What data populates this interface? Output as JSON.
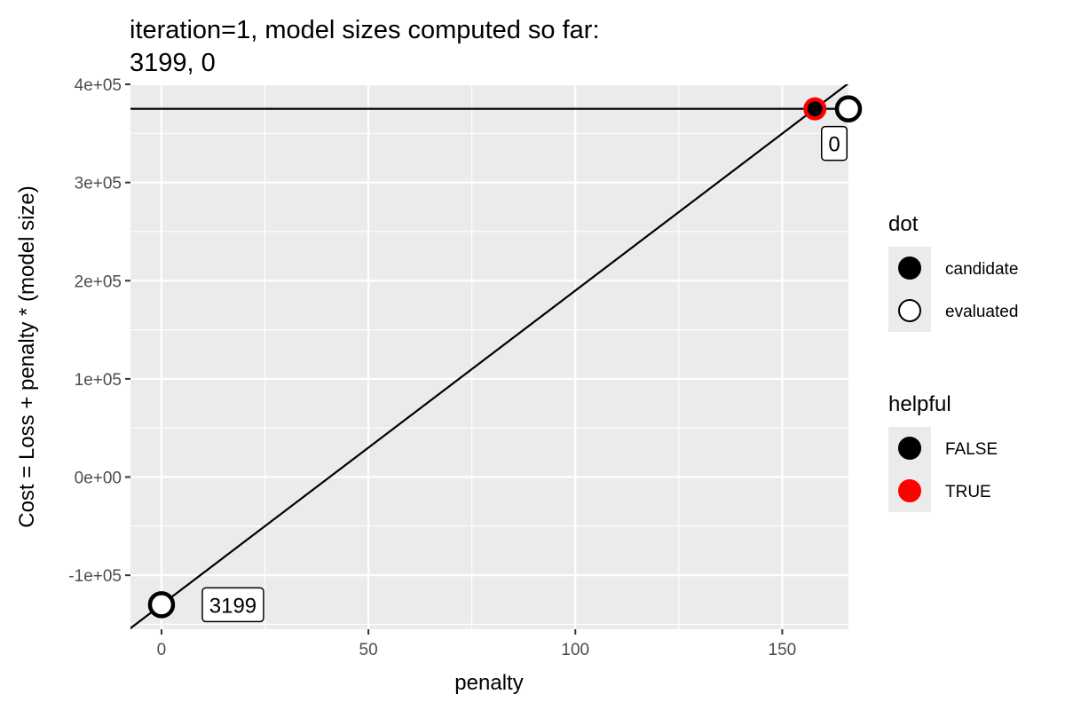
{
  "chart_data": {
    "type": "scatter",
    "title": "iteration=1, model sizes computed so far:",
    "subtitle": "3199, 0",
    "xlabel": "penalty",
    "ylabel": "Cost = Loss + penalty * (model size)",
    "xlim": [
      -7.5,
      166
    ],
    "ylim": [
      -155000,
      400000
    ],
    "x_ticks": [
      0,
      50,
      100,
      150
    ],
    "x_tick_labels": [
      "0",
      "50",
      "100",
      "150"
    ],
    "y_ticks": [
      -100000,
      0,
      100000,
      200000,
      300000,
      400000
    ],
    "y_tick_labels": [
      "-1e+05",
      "0e+00",
      "1e+05",
      "2e+05",
      "3e+05",
      "4e+05"
    ],
    "lines": [
      {
        "model_size": 0,
        "intercept": 375000,
        "slope": 0
      },
      {
        "model_size": 3199,
        "intercept": -130000,
        "slope": 3199
      }
    ],
    "points": [
      {
        "dot": "evaluated",
        "helpful": "FALSE",
        "x": 0,
        "y": -130000,
        "label": "3199"
      },
      {
        "dot": "evaluated",
        "helpful": "FALSE",
        "x": 166,
        "y": 375000,
        "label": "0"
      },
      {
        "dot": "candidate",
        "helpful": "TRUE",
        "x": 157.9,
        "y": 375000,
        "label": ""
      }
    ],
    "legends": [
      {
        "title": "dot",
        "items": [
          {
            "label": "candidate",
            "fill": "#000000",
            "stroke": "#000000"
          },
          {
            "label": "evaluated",
            "fill": "#ffffff",
            "stroke": "#000000"
          }
        ]
      },
      {
        "title": "helpful",
        "items": [
          {
            "label": "FALSE",
            "fill": "#000000",
            "stroke": "#000000"
          },
          {
            "label": "TRUE",
            "fill": "#ff0000",
            "stroke": "#ff0000"
          }
        ]
      }
    ],
    "colors": {
      "panel": "#ebebeb",
      "grid": "#ffffff",
      "helpful_true": "#ff0000",
      "helpful_false": "#000000"
    },
    "grid": true,
    "legend_position": "right"
  }
}
